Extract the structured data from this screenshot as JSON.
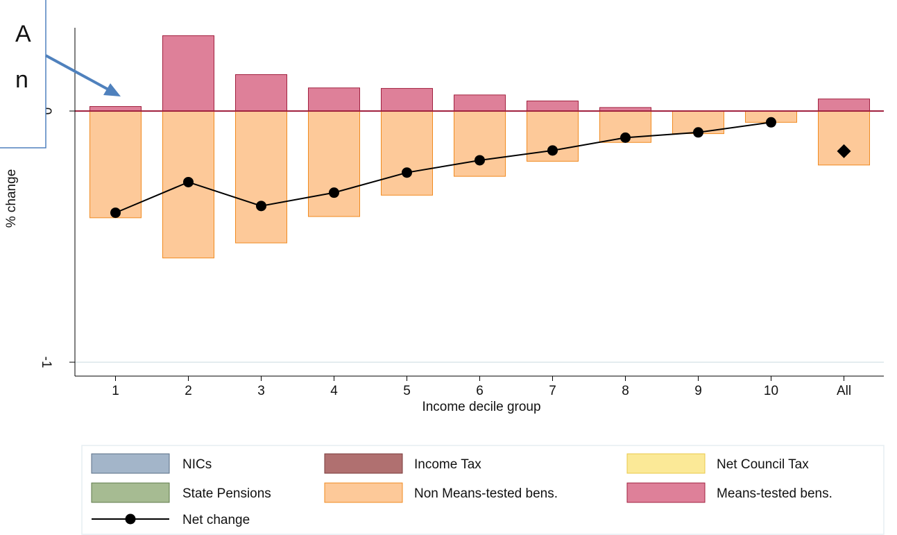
{
  "chart_data": {
    "type": "bar",
    "xlabel": "Income decile group",
    "ylabel": "% change",
    "categories": [
      "1",
      "2",
      "3",
      "4",
      "5",
      "6",
      "7",
      "8",
      "9",
      "10",
      "All"
    ],
    "ylim": [
      -1.1,
      0.33
    ],
    "yticks": [
      {
        "value": 0,
        "label": "0"
      },
      {
        "value": -1,
        "label": "-1"
      }
    ],
    "grid": false,
    "legend_position": "bottom",
    "series": [
      {
        "name": "NICs",
        "color": "#a3b5c9",
        "stroke": "#5a6e86",
        "values": [
          0,
          0,
          0,
          0,
          0,
          0,
          0,
          0,
          0,
          0,
          0
        ]
      },
      {
        "name": "Income Tax",
        "color": "#b07070",
        "stroke": "#7a3a3a",
        "values": [
          0,
          0,
          0,
          0,
          0,
          0,
          0,
          0,
          0,
          0,
          0
        ]
      },
      {
        "name": "Net Council Tax",
        "color": "#fbe997",
        "stroke": "#e8c84a",
        "values": [
          0,
          0,
          0,
          0,
          0,
          0,
          0,
          0,
          0,
          0,
          0
        ]
      },
      {
        "name": "State Pensions",
        "color": "#a6bb92",
        "stroke": "#5e7a48",
        "values": [
          0,
          0,
          0,
          0,
          0,
          0,
          0,
          0,
          0,
          0,
          0
        ]
      },
      {
        "name": "Non Means-tested bens.",
        "color": "#fdc999",
        "stroke": "#f08a1f",
        "values": [
          -0.425,
          -0.585,
          -0.525,
          -0.42,
          -0.335,
          -0.26,
          -0.2,
          -0.125,
          -0.09,
          -0.045,
          -0.215
        ]
      },
      {
        "name": "Means-tested bens.",
        "color": "#de8099",
        "stroke": "#a0203e",
        "values": [
          0.018,
          0.3,
          0.145,
          0.092,
          0.09,
          0.064,
          0.04,
          0.014,
          0,
          0,
          0.048
        ]
      }
    ],
    "net_change": {
      "name": "Net change",
      "values": [
        -0.405,
        -0.283,
        -0.378,
        -0.325,
        -0.245,
        -0.196,
        -0.157,
        -0.106,
        -0.085,
        -0.045,
        -0.16
      ],
      "all_marker": "diamond"
    }
  },
  "callout": {
    "visible_text": [
      "A",
      "n"
    ]
  }
}
